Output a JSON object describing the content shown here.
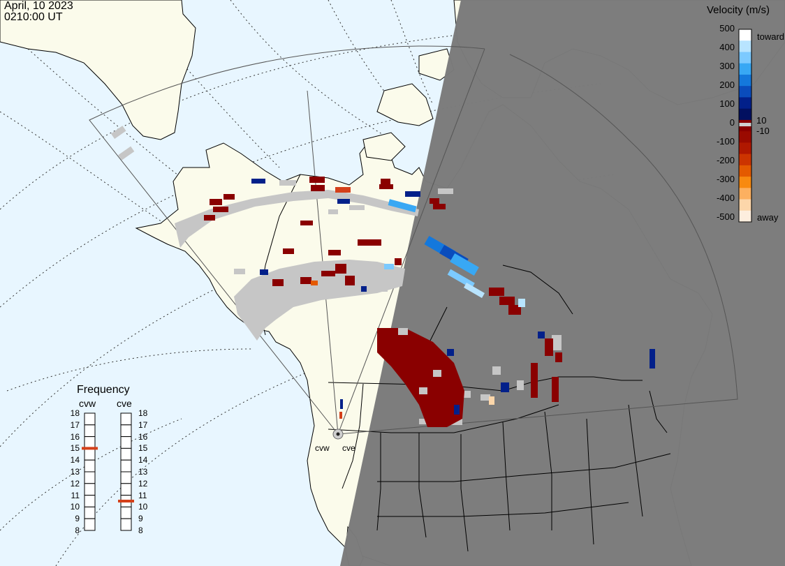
{
  "header": {
    "date": "April, 10 2023",
    "time": "0210:00 UT"
  },
  "legend": {
    "title": "Velocity (m/s)",
    "ticks": [
      "500",
      "400",
      "300",
      "200",
      "100",
      "0",
      "-100",
      "-200",
      "-300",
      "-400",
      "-500"
    ],
    "mark_pos": "10",
    "mark_neg": "-10",
    "toward_label": "toward",
    "away_label": "away",
    "colors": [
      "#ffffff",
      "#b8e4ff",
      "#7ccaff",
      "#38a8f4",
      "#1478dc",
      "#0a4cbc",
      "#02208a",
      "#021060",
      "#8a0000",
      "#9a0a00",
      "#b01800",
      "#cc3400",
      "#e45a00",
      "#f88a10",
      "#fcb060",
      "#fcd6aa",
      "#fdeede"
    ]
  },
  "frequency": {
    "title": "Frequency",
    "radars": [
      {
        "name": "cvw",
        "freq_mhz": 15
      },
      {
        "name": "cve",
        "freq_mhz": 10.5
      }
    ],
    "scale": [
      "18",
      "17",
      "16",
      "15",
      "14",
      "13",
      "12",
      "11",
      "10",
      "9",
      "8"
    ]
  },
  "map": {
    "radar_site_labels": [
      "cvw",
      "cve"
    ],
    "colors": {
      "ocean": "#e8f6ff",
      "land": "#fbfbeb",
      "night": "#7a7a7a",
      "ground_scatter": "#c6c6c6",
      "marker": "#d4401a"
    }
  }
}
